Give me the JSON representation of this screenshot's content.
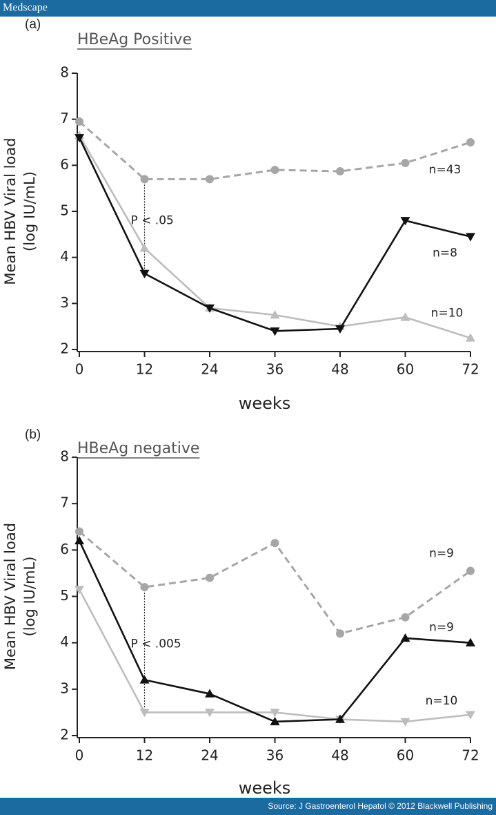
{
  "header": "Medscape",
  "source": "Source: J Gastroenterol Hepatol © 2012 Blackwell Publishing",
  "chart_data": [
    {
      "type": "line",
      "panel": "(a)",
      "title": "HBeAg Positive",
      "xlabel": "weeks",
      "ylabel": [
        "Mean HBV Viral load",
        "(log IU/mL)"
      ],
      "annotation": "P < .05",
      "x": [
        0,
        12,
        24,
        36,
        48,
        60,
        72
      ],
      "xlim": [
        0,
        72
      ],
      "xticks": [
        0,
        12,
        24,
        36,
        48,
        60,
        72
      ],
      "ylim": [
        2,
        8
      ],
      "yticks": [
        2,
        3,
        4,
        5,
        6,
        7,
        8
      ],
      "series": [
        {
          "name": "n=43",
          "color": "#a6a6a6",
          "dashed": true,
          "marker": "circle",
          "values": [
            6.95,
            5.7,
            5.7,
            5.9,
            5.87,
            6.05,
            6.5
          ]
        },
        {
          "name": "n=8",
          "color": "#111111",
          "dashed": false,
          "marker": "triangle-down",
          "values": [
            6.6,
            3.65,
            2.9,
            2.4,
            2.45,
            4.8,
            4.45
          ]
        },
        {
          "name": "n=10",
          "color": "#bdbdbd",
          "dashed": false,
          "marker": "triangle-up",
          "values": [
            6.65,
            4.2,
            2.9,
            2.75,
            2.5,
            2.7,
            2.25
          ]
        }
      ]
    },
    {
      "type": "line",
      "panel": "(b)",
      "title": "HBeAg negative",
      "xlabel": "weeks",
      "ylabel": [
        "Mean HBV Viral load",
        "(log IU/mL)"
      ],
      "annotation": "P < .005",
      "x": [
        0,
        12,
        24,
        36,
        48,
        60,
        72
      ],
      "xlim": [
        0,
        72
      ],
      "xticks": [
        0,
        12,
        24,
        36,
        48,
        60,
        72
      ],
      "ylim": [
        2,
        8
      ],
      "yticks": [
        2,
        3,
        4,
        5,
        6,
        7,
        8
      ],
      "series": [
        {
          "name": "n=9",
          "color": "#a6a6a6",
          "dashed": true,
          "marker": "circle",
          "values": [
            6.4,
            5.2,
            5.4,
            6.15,
            4.2,
            4.55,
            5.55
          ]
        },
        {
          "name": "n=9",
          "color": "#111111",
          "dashed": false,
          "marker": "triangle-up",
          "values": [
            6.2,
            3.2,
            2.9,
            2.3,
            2.35,
            4.1,
            4.0
          ]
        },
        {
          "name": "n=10",
          "color": "#bdbdbd",
          "dashed": false,
          "marker": "triangle-down",
          "values": [
            5.15,
            2.5,
            2.5,
            2.5,
            2.35,
            2.3,
            2.45
          ]
        }
      ]
    }
  ]
}
